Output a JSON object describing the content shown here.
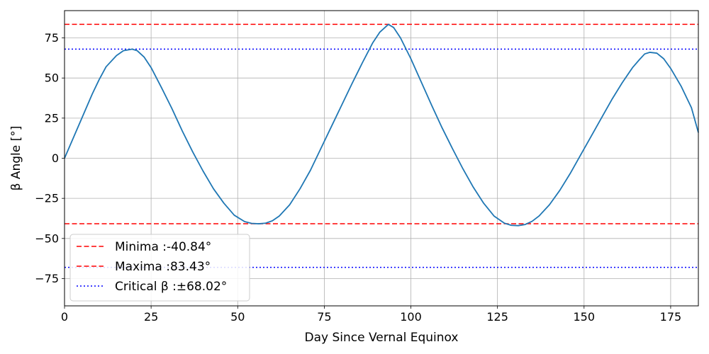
{
  "chart_data": {
    "type": "line",
    "title": "",
    "xlabel": "Day Since Vernal Equinox",
    "ylabel": "β Angle [°]",
    "xlim": [
      0,
      183
    ],
    "ylim": [
      -92,
      92
    ],
    "xticks": [
      0,
      25,
      50,
      75,
      100,
      125,
      150,
      175
    ],
    "yticks": [
      -75,
      -50,
      -25,
      0,
      25,
      50,
      75
    ],
    "grid": true,
    "legend_position": "lower-left",
    "series": [
      {
        "color": "#1f77b4",
        "x": [
          0,
          2,
          5,
          8,
          10,
          12,
          15,
          17,
          19,
          19.5,
          21,
          23,
          25,
          28,
          31,
          34,
          37,
          40,
          43,
          46,
          49,
          52,
          54,
          56,
          58,
          60,
          62,
          65,
          68,
          71,
          74,
          77,
          80,
          83,
          86,
          89,
          91,
          93.5,
          95,
          97,
          100,
          103,
          106,
          109,
          112,
          115,
          118,
          121,
          124,
          127,
          129,
          131,
          133,
          135,
          137,
          140,
          143,
          146,
          149,
          152,
          155,
          158,
          161,
          164,
          166,
          167.5,
          169,
          171,
          173,
          175,
          178,
          181,
          183
        ],
        "y": [
          0,
          10,
          25,
          40,
          49,
          57,
          64,
          67,
          67.8,
          68,
          67,
          63,
          56.5,
          44,
          31,
          17,
          4,
          -8,
          -19,
          -28,
          -35.5,
          -39.5,
          -40.6,
          -40.84,
          -40.5,
          -39,
          -36,
          -29,
          -19,
          -7.5,
          6,
          19.5,
          33,
          46.5,
          59.5,
          72,
          78.5,
          83.43,
          81.5,
          75,
          62,
          47.5,
          33,
          19,
          6,
          -6.5,
          -18,
          -28,
          -36,
          -40.5,
          -41.8,
          -42,
          -41.3,
          -39.3,
          -36,
          -29,
          -20,
          -9.5,
          2,
          13.5,
          25,
          36.5,
          47,
          56.5,
          61.5,
          65,
          66,
          65.5,
          62,
          56,
          45,
          31.5,
          16
        ]
      }
    ],
    "reference_lines": [
      {
        "y": -40.84,
        "color": "#ff0000",
        "style": "dashed"
      },
      {
        "y": 83.43,
        "color": "#ff0000",
        "style": "dashed"
      },
      {
        "y": 68.02,
        "color": "#0000ff",
        "style": "dotted"
      },
      {
        "y": -68.02,
        "color": "#0000ff",
        "style": "dotted"
      }
    ],
    "legend": [
      {
        "label": "Minima :-40.84°",
        "color": "#ff0000",
        "style": "dashed"
      },
      {
        "label": "Maxima :83.43°",
        "color": "#ff0000",
        "style": "dashed"
      },
      {
        "label": "Critical β :±68.02°",
        "color": "#0000ff",
        "style": "dotted"
      }
    ]
  }
}
